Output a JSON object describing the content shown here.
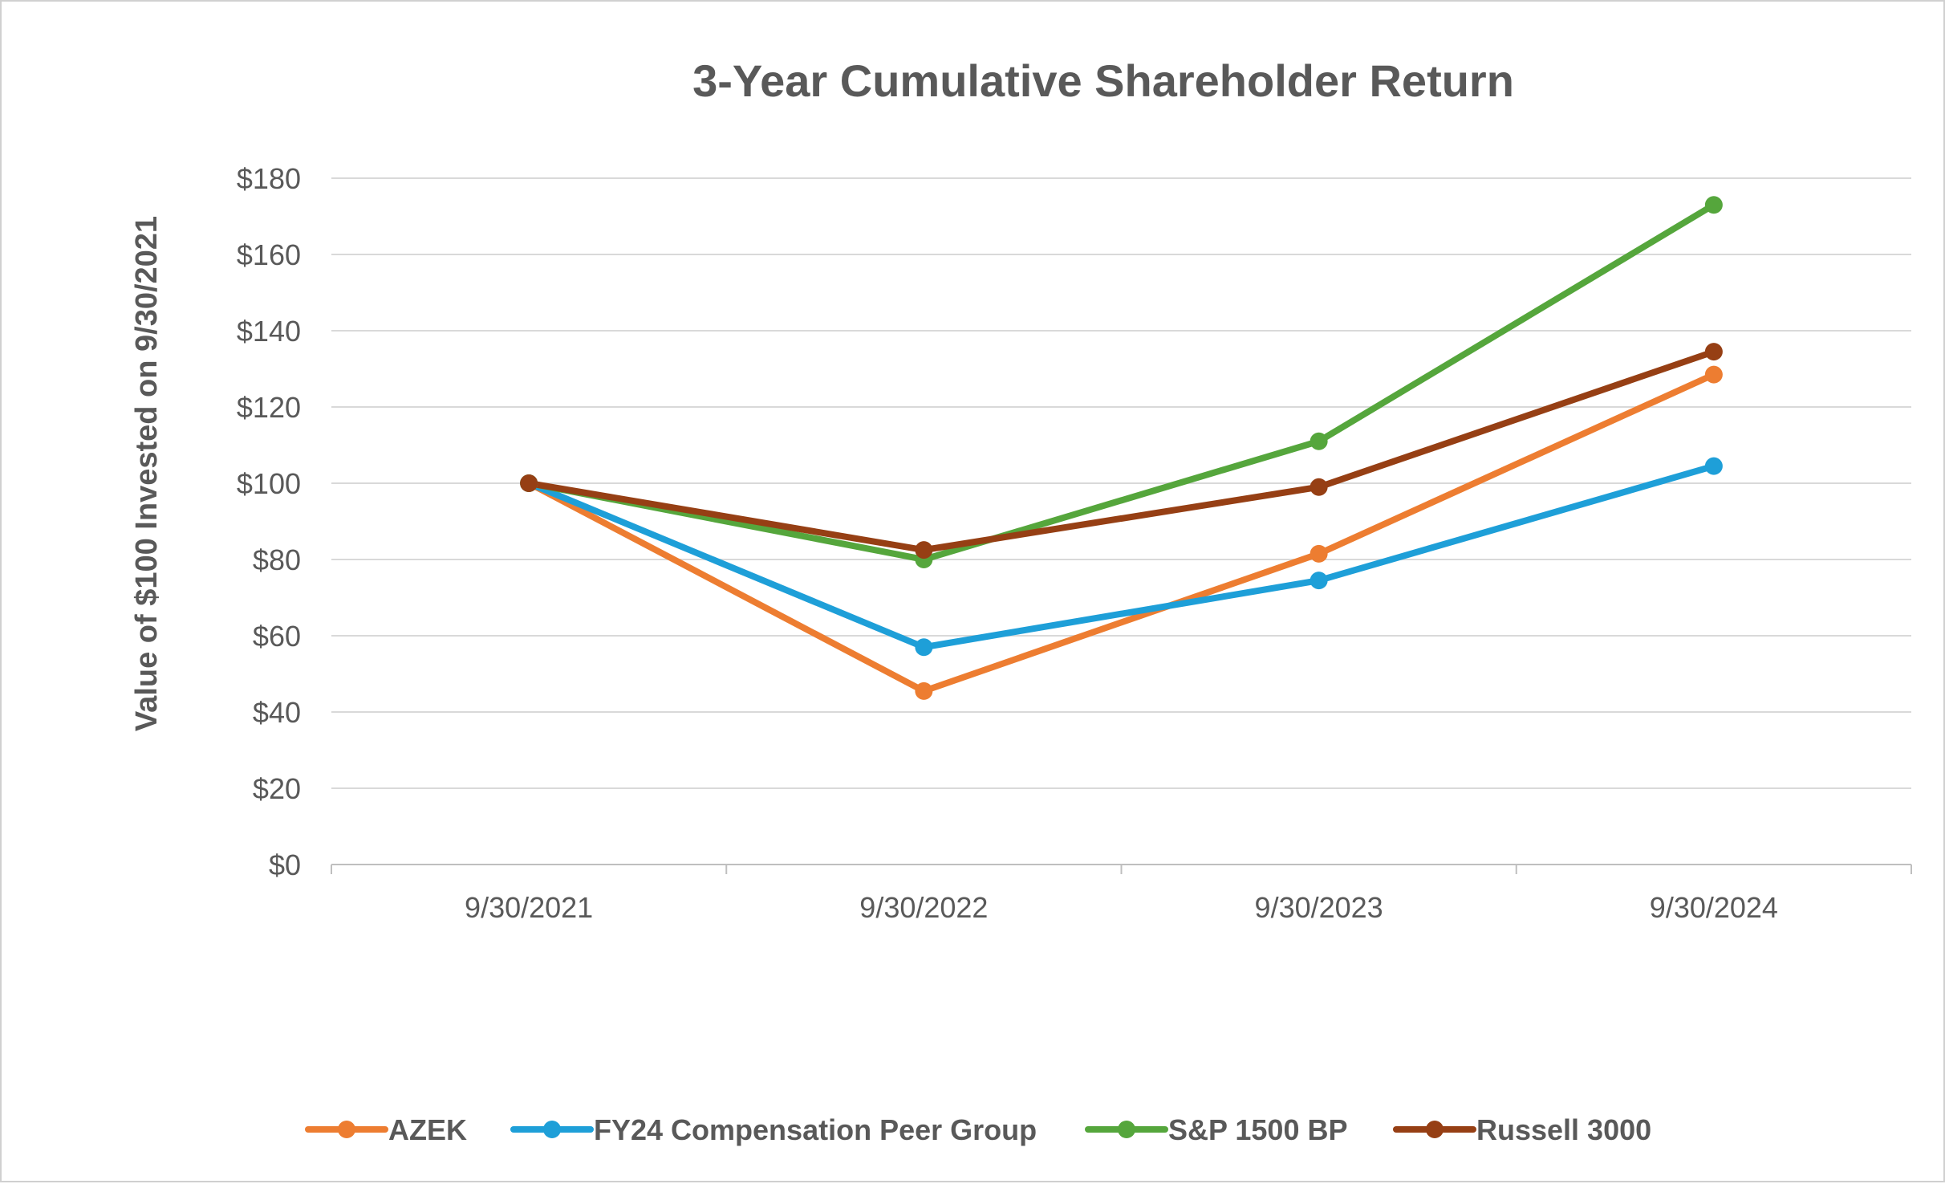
{
  "chart_data": {
    "type": "line",
    "title": "3-Year Cumulative Shareholder Return",
    "ylabel": "Value of $100 Invested on 9/30/2021",
    "xlabel": "",
    "categories": [
      "9/30/2021",
      "9/30/2022",
      "9/30/2023",
      "9/30/2024"
    ],
    "ylim": [
      0,
      180
    ],
    "yticks": [
      0,
      20,
      40,
      60,
      80,
      100,
      120,
      140,
      160,
      180
    ],
    "ytick_labels": [
      "$0",
      "$20",
      "$40",
      "$60",
      "$80",
      "$100",
      "$120",
      "$140",
      "$160",
      "$180"
    ],
    "grid": true,
    "legend_position": "bottom",
    "series": [
      {
        "name": "AZEK",
        "color": "#ED7D31",
        "values": [
          100,
          45.5,
          81.5,
          128.5
        ]
      },
      {
        "name": "FY24 Compensation Peer Group",
        "color": "#1E9FD8",
        "values": [
          100,
          57,
          74.5,
          104.5
        ]
      },
      {
        "name": "S&P 1500 BP",
        "color": "#55A63C",
        "values": [
          100,
          80,
          111,
          173
        ]
      },
      {
        "name": "Russell 3000",
        "color": "#963F14",
        "values": [
          100,
          82.5,
          99,
          134.5
        ]
      }
    ]
  }
}
